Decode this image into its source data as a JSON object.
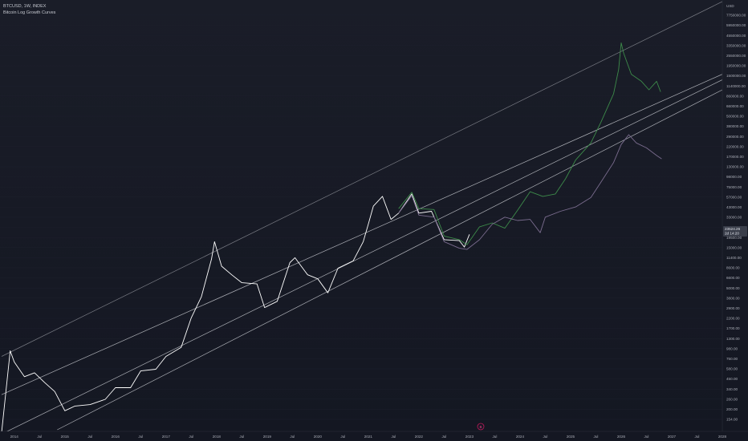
{
  "header": {
    "symbol_line": "BTCUSD, 1W, INDEX",
    "indicator_name": "Bitcoin Log Growth Curves"
  },
  "chart_data": {
    "type": "line",
    "scale": "log",
    "currency_label": "USD",
    "y_ticks": [
      "7750000.00",
      "5950000.00",
      "4550000.00",
      "3350000.00",
      "2550000.00",
      "1950000.00",
      "1500000.00",
      "1140000.00",
      "860000.00",
      "660000.00",
      "500000.00",
      "380000.00",
      "290000.00",
      "220000.00",
      "170000.00",
      "130000.00",
      "98000.00",
      "75000.00",
      "57000.00",
      "43000.00",
      "33000.00",
      "25000.00",
      "19500.00",
      "15000.00",
      "11400.00",
      "8600.00",
      "6600.00",
      "5000.00",
      "3800.00",
      "2900.00",
      "2200.00",
      "1700.00",
      "1300.00",
      "980.00",
      "750.00",
      "580.00",
      "450.00",
      "340.00",
      "260.00",
      "200.00",
      "154.00"
    ],
    "x_ticks": [
      "2014",
      "Jul",
      "2015",
      "Jul",
      "2016",
      "Jul",
      "2017",
      "Jul",
      "2018",
      "Jul",
      "2019",
      "Jul",
      "2020",
      "Jul",
      "2021",
      "Jul",
      "2022",
      "Jul",
      "2023",
      "Jul",
      "2024",
      "Jul",
      "2025",
      "Jul",
      "2026",
      "Jul",
      "2027",
      "Jul",
      "2028"
    ],
    "x_range": [
      2013.75,
      2028.0
    ],
    "y_range": [
      140,
      10000000
    ],
    "current_price": {
      "value": "23524.26",
      "countdown": "2d 14:20"
    },
    "event_marker": "B",
    "series": [
      {
        "name": "BTCUSD",
        "color": "#ffffff",
        "points": [
          [
            2013.75,
            130
          ],
          [
            2013.92,
            1100
          ],
          [
            2014.0,
            820
          ],
          [
            2014.2,
            560
          ],
          [
            2014.4,
            620
          ],
          [
            2014.6,
            480
          ],
          [
            2014.8,
            380
          ],
          [
            2015.0,
            230
          ],
          [
            2015.2,
            260
          ],
          [
            2015.5,
            270
          ],
          [
            2015.8,
            310
          ],
          [
            2016.0,
            420
          ],
          [
            2016.3,
            420
          ],
          [
            2016.5,
            650
          ],
          [
            2016.8,
            680
          ],
          [
            2017.0,
            950
          ],
          [
            2017.3,
            1200
          ],
          [
            2017.5,
            2600
          ],
          [
            2017.7,
            4500
          ],
          [
            2017.9,
            12000
          ],
          [
            2017.96,
            19000
          ],
          [
            2018.1,
            10000
          ],
          [
            2018.3,
            8000
          ],
          [
            2018.5,
            6500
          ],
          [
            2018.8,
            6300
          ],
          [
            2018.95,
            3400
          ],
          [
            2019.2,
            4000
          ],
          [
            2019.45,
            11000
          ],
          [
            2019.55,
            12500
          ],
          [
            2019.8,
            8000
          ],
          [
            2020.0,
            7200
          ],
          [
            2020.2,
            5000
          ],
          [
            2020.4,
            9500
          ],
          [
            2020.7,
            11500
          ],
          [
            2020.9,
            19000
          ],
          [
            2021.0,
            30000
          ],
          [
            2021.1,
            48000
          ],
          [
            2021.28,
            62000
          ],
          [
            2021.45,
            34000
          ],
          [
            2021.6,
            40000
          ],
          [
            2021.86,
            66000
          ],
          [
            2022.0,
            40000
          ],
          [
            2022.25,
            42000
          ],
          [
            2022.5,
            20000
          ],
          [
            2022.8,
            19500
          ],
          [
            2022.9,
            16500
          ],
          [
            2023.0,
            23000
          ]
        ]
      },
      {
        "name": "Green path",
        "color": "#3d8b4a",
        "points": [
          [
            2021.6,
            45000
          ],
          [
            2021.86,
            69000
          ],
          [
            2022.0,
            45000
          ],
          [
            2022.3,
            44000
          ],
          [
            2022.5,
            22000
          ],
          [
            2022.8,
            20000
          ],
          [
            2022.95,
            17500
          ],
          [
            2023.2,
            28000
          ],
          [
            2023.45,
            31000
          ],
          [
            2023.7,
            27000
          ],
          [
            2023.95,
            43000
          ],
          [
            2024.2,
            70000
          ],
          [
            2024.45,
            62000
          ],
          [
            2024.7,
            66000
          ],
          [
            2024.9,
            98000
          ],
          [
            2025.1,
            160000
          ],
          [
            2025.4,
            250000
          ],
          [
            2025.6,
            430000
          ],
          [
            2025.85,
            900000
          ],
          [
            2025.95,
            1700000
          ],
          [
            2026.0,
            3400000
          ],
          [
            2026.05,
            2600000
          ],
          [
            2026.2,
            1500000
          ],
          [
            2026.4,
            1250000
          ],
          [
            2026.55,
            1000000
          ],
          [
            2026.7,
            1250000
          ],
          [
            2026.78,
            950000
          ]
        ]
      },
      {
        "name": "Purple path",
        "color": "#7a6c8e",
        "points": [
          [
            2021.6,
            40000
          ],
          [
            2021.86,
            63000
          ],
          [
            2022.0,
            38000
          ],
          [
            2022.3,
            36000
          ],
          [
            2022.5,
            19000
          ],
          [
            2022.8,
            16000
          ],
          [
            2022.95,
            15500
          ],
          [
            2023.2,
            20000
          ],
          [
            2023.45,
            30000
          ],
          [
            2023.7,
            36000
          ],
          [
            2023.95,
            33000
          ],
          [
            2024.2,
            34000
          ],
          [
            2024.4,
            24000
          ],
          [
            2024.5,
            36000
          ],
          [
            2024.8,
            42000
          ],
          [
            2025.1,
            47000
          ],
          [
            2025.4,
            60000
          ],
          [
            2025.6,
            90000
          ],
          [
            2025.85,
            150000
          ],
          [
            2026.0,
            240000
          ],
          [
            2026.15,
            310000
          ],
          [
            2026.3,
            250000
          ],
          [
            2026.5,
            220000
          ],
          [
            2026.7,
            180000
          ],
          [
            2026.8,
            165000
          ]
        ]
      },
      {
        "name": "Log curve 1",
        "color": "#8a8c94",
        "points": [
          [
            2013.75,
            950
          ],
          [
            2028.0,
            10000000
          ]
        ]
      },
      {
        "name": "Log curve 2",
        "color": "#c9cbd1",
        "points": [
          [
            2013.75,
            350
          ],
          [
            2028.0,
            1500000
          ]
        ]
      },
      {
        "name": "Log curve 3",
        "color": "#c9cbd1",
        "points": [
          [
            2013.75,
            125
          ],
          [
            2028.0,
            1300000
          ]
        ]
      },
      {
        "name": "Log curve 4",
        "color": "#c9cbd1",
        "points": [
          [
            2014.85,
            140
          ],
          [
            2028.0,
            1000000
          ]
        ]
      }
    ]
  }
}
